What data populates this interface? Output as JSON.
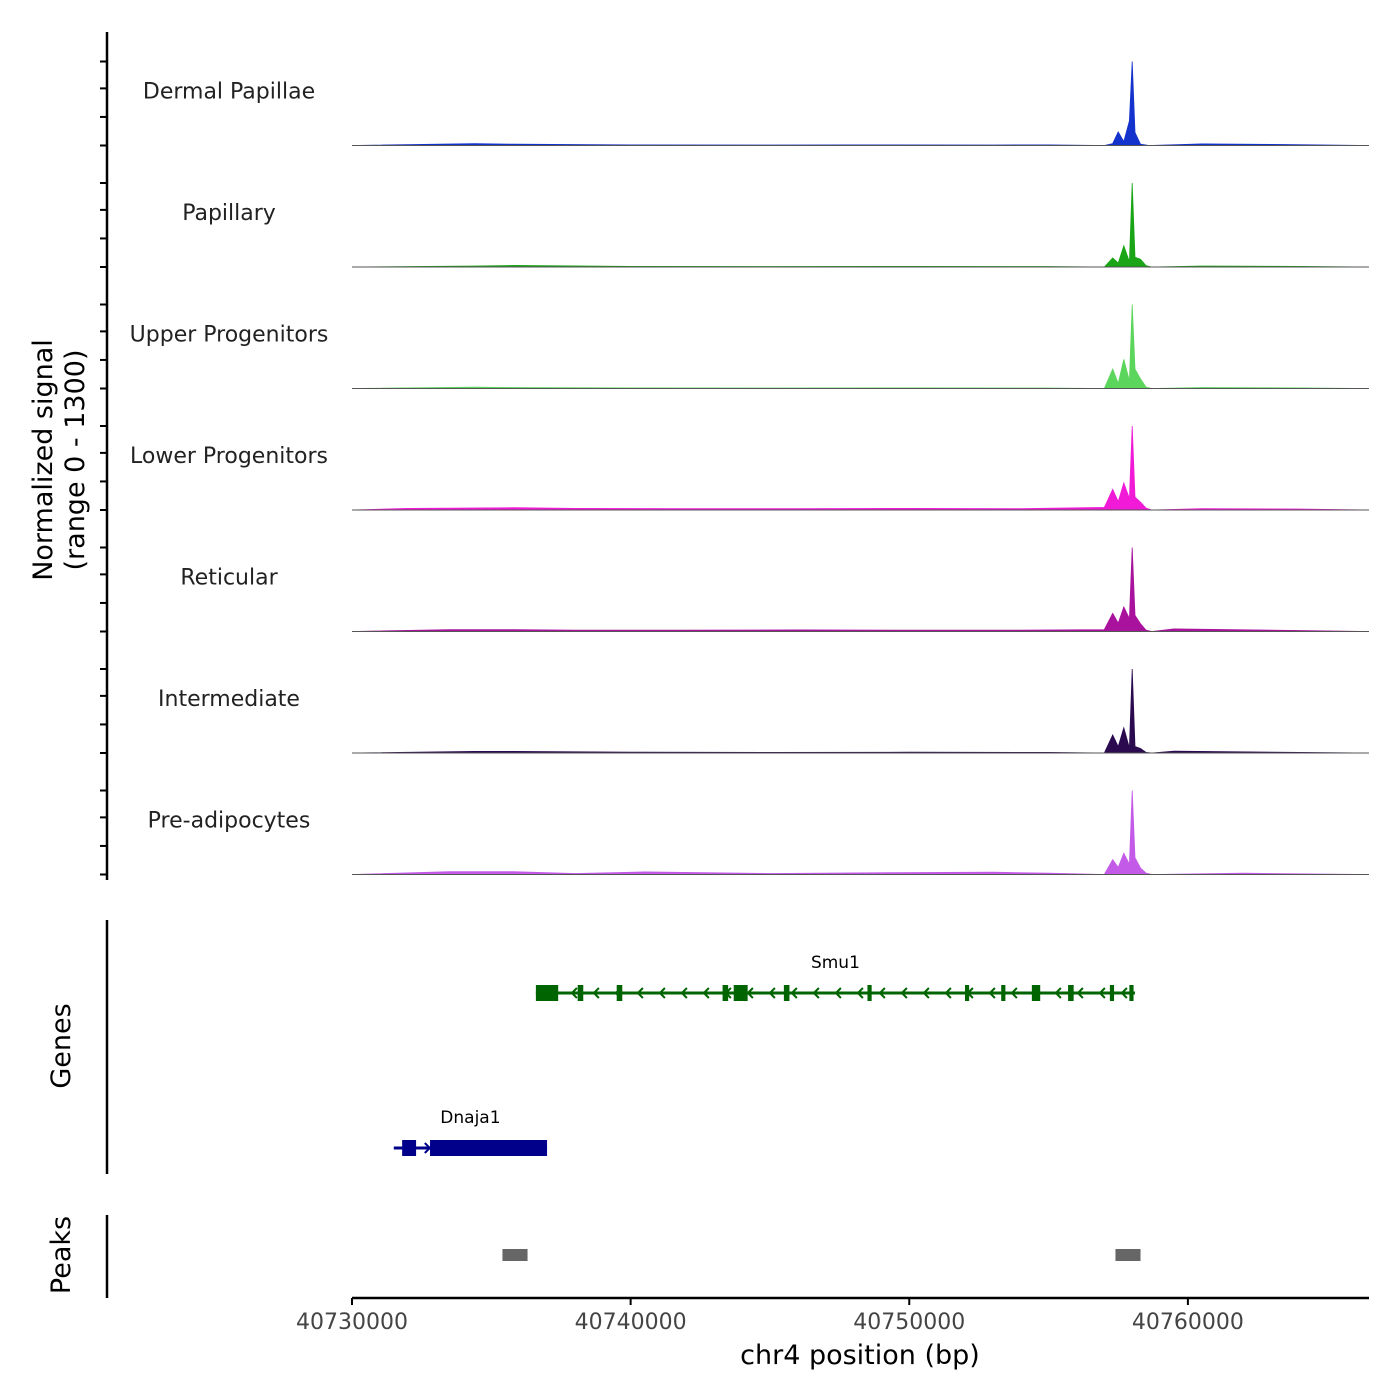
{
  "chart_data": {
    "type": "area",
    "title": "",
    "xlabel": "chr4 position (bp)",
    "ylabel": "Normalized signal",
    "ylabel_range": "(range 0 - 1300)",
    "ylim": [
      0,
      1300
    ],
    "xlim": [
      40730000,
      40766500
    ],
    "x_ticks": [
      40730000,
      40740000,
      40750000,
      40760000
    ],
    "x_tick_labels": [
      "40730000",
      "40740000",
      "40750000",
      "40760000"
    ],
    "coverage_tracks": [
      {
        "name": "Dermal Papillae",
        "color": "#1432cc",
        "points": [
          [
            40730000,
            0
          ],
          [
            40734400,
            30
          ],
          [
            40735800,
            20
          ],
          [
            40740000,
            10
          ],
          [
            40745000,
            8
          ],
          [
            40748000,
            10
          ],
          [
            40753000,
            8
          ],
          [
            40755000,
            10
          ],
          [
            40757000,
            0
          ],
          [
            40757300,
            30
          ],
          [
            40757500,
            210
          ],
          [
            40757700,
            60
          ],
          [
            40757900,
            380
          ],
          [
            40758000,
            1300
          ],
          [
            40758100,
            200
          ],
          [
            40758300,
            20
          ],
          [
            40758600,
            0
          ],
          [
            40760500,
            25
          ],
          [
            40763500,
            15
          ],
          [
            40766500,
            0
          ]
        ]
      },
      {
        "name": "Papillary",
        "color": "#1aa516",
        "points": [
          [
            40730000,
            0
          ],
          [
            40734400,
            15
          ],
          [
            40735800,
            25
          ],
          [
            40740000,
            10
          ],
          [
            40745000,
            8
          ],
          [
            40750000,
            10
          ],
          [
            40755000,
            8
          ],
          [
            40757000,
            0
          ],
          [
            40757300,
            140
          ],
          [
            40757500,
            60
          ],
          [
            40757700,
            330
          ],
          [
            40757900,
            80
          ],
          [
            40758000,
            1300
          ],
          [
            40758100,
            150
          ],
          [
            40758300,
            120
          ],
          [
            40758500,
            20
          ],
          [
            40758700,
            0
          ],
          [
            40760500,
            15
          ],
          [
            40764000,
            10
          ],
          [
            40766500,
            0
          ]
        ]
      },
      {
        "name": "Upper Progenitors",
        "color": "#5bd55b",
        "points": [
          [
            40730000,
            0
          ],
          [
            40734400,
            20
          ],
          [
            40735800,
            15
          ],
          [
            40740000,
            10
          ],
          [
            40745000,
            8
          ],
          [
            40750000,
            10
          ],
          [
            40755000,
            8
          ],
          [
            40757000,
            0
          ],
          [
            40757300,
            300
          ],
          [
            40757500,
            80
          ],
          [
            40757700,
            450
          ],
          [
            40757900,
            120
          ],
          [
            40758000,
            1300
          ],
          [
            40758100,
            300
          ],
          [
            40758300,
            150
          ],
          [
            40758500,
            20
          ],
          [
            40758700,
            0
          ],
          [
            40760500,
            15
          ],
          [
            40764000,
            10
          ],
          [
            40766500,
            0
          ]
        ]
      },
      {
        "name": "Lower Progenitors",
        "color": "#f01ad7",
        "points": [
          [
            40730000,
            0
          ],
          [
            40732000,
            25
          ],
          [
            40735800,
            35
          ],
          [
            40738000,
            25
          ],
          [
            40742000,
            20
          ],
          [
            40746000,
            20
          ],
          [
            40750000,
            25
          ],
          [
            40754000,
            20
          ],
          [
            40757000,
            40
          ],
          [
            40757300,
            320
          ],
          [
            40757500,
            130
          ],
          [
            40757700,
            420
          ],
          [
            40757900,
            180
          ],
          [
            40758000,
            1300
          ],
          [
            40758100,
            200
          ],
          [
            40758300,
            120
          ],
          [
            40758500,
            30
          ],
          [
            40758700,
            0
          ],
          [
            40760500,
            20
          ],
          [
            40764000,
            15
          ],
          [
            40766500,
            0
          ]
        ]
      },
      {
        "name": "Reticular",
        "color": "#a8129c",
        "points": [
          [
            40730000,
            0
          ],
          [
            40733500,
            30
          ],
          [
            40735800,
            30
          ],
          [
            40738000,
            20
          ],
          [
            40742000,
            20
          ],
          [
            40746000,
            25
          ],
          [
            40750000,
            20
          ],
          [
            40754000,
            20
          ],
          [
            40757000,
            30
          ],
          [
            40757300,
            280
          ],
          [
            40757500,
            130
          ],
          [
            40757700,
            380
          ],
          [
            40757900,
            200
          ],
          [
            40758000,
            1300
          ],
          [
            40758100,
            250
          ],
          [
            40758300,
            120
          ],
          [
            40758500,
            20
          ],
          [
            40758700,
            0
          ],
          [
            40759500,
            40
          ],
          [
            40764000,
            15
          ],
          [
            40766500,
            0
          ]
        ]
      },
      {
        "name": "Intermediate",
        "color": "#2b0a50",
        "points": [
          [
            40730000,
            0
          ],
          [
            40734400,
            25
          ],
          [
            40735800,
            25
          ],
          [
            40740000,
            12
          ],
          [
            40745000,
            10
          ],
          [
            40750000,
            12
          ],
          [
            40755000,
            10
          ],
          [
            40757000,
            0
          ],
          [
            40757300,
            280
          ],
          [
            40757500,
            100
          ],
          [
            40757700,
            390
          ],
          [
            40757900,
            80
          ],
          [
            40758000,
            1300
          ],
          [
            40758100,
            100
          ],
          [
            40758300,
            70
          ],
          [
            40758500,
            10
          ],
          [
            40758700,
            0
          ],
          [
            40759500,
            30
          ],
          [
            40764000,
            10
          ],
          [
            40766500,
            0
          ]
        ]
      },
      {
        "name": "Pre-adipocytes",
        "color": "#c45ae8",
        "points": [
          [
            40730000,
            0
          ],
          [
            40733500,
            45
          ],
          [
            40735800,
            45
          ],
          [
            40738000,
            15
          ],
          [
            40740500,
            40
          ],
          [
            40745000,
            15
          ],
          [
            40749500,
            30
          ],
          [
            40753000,
            35
          ],
          [
            40755000,
            20
          ],
          [
            40757000,
            0
          ],
          [
            40757300,
            230
          ],
          [
            40757500,
            110
          ],
          [
            40757700,
            330
          ],
          [
            40757900,
            160
          ],
          [
            40758000,
            1300
          ],
          [
            40758100,
            260
          ],
          [
            40758300,
            100
          ],
          [
            40758500,
            20
          ],
          [
            40758700,
            0
          ],
          [
            40762000,
            20
          ],
          [
            40766500,
            0
          ]
        ]
      }
    ],
    "gene_track_label": "Genes",
    "genes": [
      {
        "name": "Smu1",
        "color": "#006400",
        "start": 40736600,
        "end": 40758100,
        "strand": "-",
        "exons": [
          [
            40736600,
            40737400
          ],
          [
            40738100,
            40738300
          ],
          [
            40739500,
            40739700
          ],
          [
            40743300,
            40743500
          ],
          [
            40743700,
            40744200
          ],
          [
            40745500,
            40745700
          ],
          [
            40748500,
            40748650
          ],
          [
            40752000,
            40752150
          ],
          [
            40753300,
            40753450
          ],
          [
            40754400,
            40754700
          ],
          [
            40755700,
            40755900
          ],
          [
            40757200,
            40757350
          ],
          [
            40757900,
            40758050
          ]
        ]
      },
      {
        "name": "Dnaja1",
        "color": "#00008b",
        "start": 40731500,
        "end": 40737000,
        "strand": "+",
        "exons": [
          [
            40731800,
            40732300
          ],
          [
            40732800,
            40737000
          ]
        ]
      }
    ],
    "peak_track_label": "Peaks",
    "peaks": [
      [
        40735400,
        40736300
      ],
      [
        40757400,
        40758300
      ]
    ],
    "peak_color": "#666666"
  }
}
